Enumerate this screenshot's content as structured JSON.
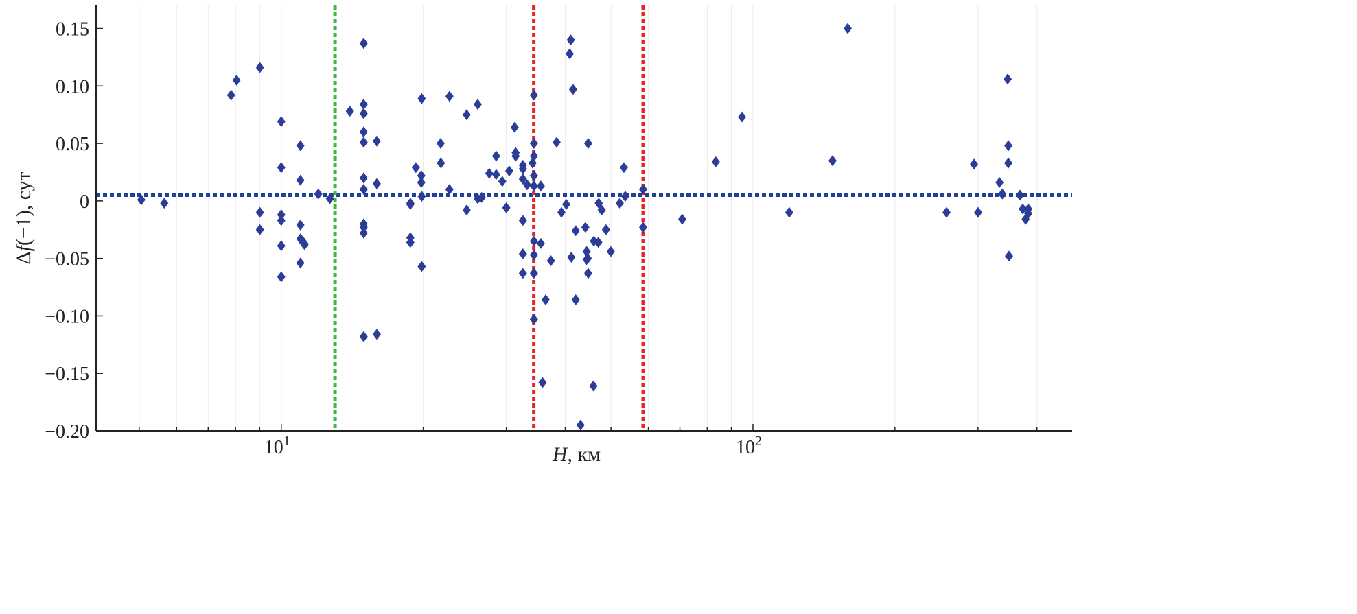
{
  "chart_data": {
    "type": "scatter",
    "title": "",
    "xlabel_var": "H",
    "xlabel_unit": ", км",
    "ylabel_pre": "Δ",
    "ylabel_var": "f",
    "ylabel_post": "(−1), сут",
    "xscale": "log",
    "xlim": [
      4.05,
      475
    ],
    "ylim": [
      -0.2,
      0.17
    ],
    "grid": "faint minor vertical",
    "yticks": [
      {
        "value": 0.15,
        "label": "0.15"
      },
      {
        "value": 0.1,
        "label": "0.10"
      },
      {
        "value": 0.05,
        "label": "0.05"
      },
      {
        "value": 0,
        "label": "0"
      },
      {
        "value": -0.05,
        "label": "−0.05"
      },
      {
        "value": -0.1,
        "label": "−0.10"
      },
      {
        "value": -0.15,
        "label": "−0.15"
      },
      {
        "value": -0.2,
        "label": "−0.20"
      }
    ],
    "xticks": [
      {
        "value": 10,
        "base": "10",
        "exp": "1"
      },
      {
        "value": 100,
        "base": "10",
        "exp": "2"
      }
    ],
    "reference_lines": [
      {
        "orientation": "horizontal",
        "value": 0.005,
        "color": "#1f3f9c"
      },
      {
        "orientation": "vertical",
        "value": 13.0,
        "color": "#3cb83c"
      },
      {
        "orientation": "vertical",
        "value": 34.3,
        "color": "#e8262a"
      },
      {
        "orientation": "vertical",
        "value": 58.5,
        "color": "#e8262a"
      }
    ],
    "marker_color": "#2b3d97",
    "points": [
      [
        5.05,
        0.001
      ],
      [
        5.65,
        -0.002
      ],
      [
        7.83,
        0.092
      ],
      [
        8.04,
        0.105
      ],
      [
        9.01,
        0.116
      ],
      [
        9.01,
        -0.01
      ],
      [
        9.01,
        -0.025
      ],
      [
        10,
        0.069
      ],
      [
        10,
        0.029
      ],
      [
        10,
        -0.012
      ],
      [
        10,
        -0.017
      ],
      [
        10,
        -0.039
      ],
      [
        10,
        -0.066
      ],
      [
        10.98,
        0.048
      ],
      [
        10.98,
        0.018
      ],
      [
        10.98,
        -0.021
      ],
      [
        10.98,
        -0.033
      ],
      [
        11.1,
        -0.035
      ],
      [
        11.2,
        -0.038
      ],
      [
        10.98,
        -0.054
      ],
      [
        11.98,
        0.006
      ],
      [
        12.68,
        0.002
      ],
      [
        13.98,
        0.078
      ],
      [
        14.95,
        0.137
      ],
      [
        14.95,
        0.084
      ],
      [
        14.95,
        0.076
      ],
      [
        14.95,
        0.06
      ],
      [
        14.95,
        0.051
      ],
      [
        14.95,
        0.02
      ],
      [
        14.95,
        0.01
      ],
      [
        14.95,
        -0.02
      ],
      [
        14.95,
        -0.023
      ],
      [
        14.95,
        -0.028
      ],
      [
        14.95,
        -0.118
      ],
      [
        15.94,
        0.052
      ],
      [
        15.94,
        0.015
      ],
      [
        15.94,
        -0.116
      ],
      [
        18.78,
        -0.003
      ],
      [
        18.78,
        -0.002
      ],
      [
        18.78,
        -0.032
      ],
      [
        18.78,
        -0.036
      ],
      [
        19.29,
        0.029
      ],
      [
        19.81,
        0.022
      ],
      [
        19.81,
        0.016
      ],
      [
        19.85,
        0.004
      ],
      [
        19.85,
        0.089
      ],
      [
        19.85,
        -0.057
      ],
      [
        21.77,
        0.05
      ],
      [
        21.8,
        0.033
      ],
      [
        22.73,
        0.091
      ],
      [
        22.73,
        0.01
      ],
      [
        24.72,
        0.075
      ],
      [
        24.72,
        -0.008
      ],
      [
        26.09,
        0.084
      ],
      [
        26.09,
        0.002
      ],
      [
        26.6,
        0.003
      ],
      [
        27.6,
        0.024
      ],
      [
        28.55,
        0.039
      ],
      [
        28.55,
        0.023
      ],
      [
        29.42,
        0.017
      ],
      [
        30.0,
        -0.006
      ],
      [
        30.43,
        0.026
      ],
      [
        31.25,
        0.064
      ],
      [
        31.4,
        0.042
      ],
      [
        31.4,
        0.039
      ],
      [
        32.53,
        0.031
      ],
      [
        32.53,
        0.028
      ],
      [
        32.53,
        0.019
      ],
      [
        32.53,
        -0.017
      ],
      [
        32.53,
        -0.046
      ],
      [
        32.53,
        -0.063
      ],
      [
        33.2,
        0.014
      ],
      [
        34.1,
        0.033
      ],
      [
        34.33,
        0.092
      ],
      [
        34.33,
        0.05
      ],
      [
        34.33,
        0.039
      ],
      [
        34.33,
        0.022
      ],
      [
        34.33,
        0.013
      ],
      [
        34.33,
        -0.035
      ],
      [
        34.33,
        -0.047
      ],
      [
        34.33,
        -0.063
      ],
      [
        34.33,
        -0.103
      ],
      [
        35.5,
        0.013
      ],
      [
        35.5,
        -0.037
      ],
      [
        35.8,
        -0.158
      ],
      [
        36.35,
        -0.086
      ],
      [
        37.3,
        -0.052
      ],
      [
        38.35,
        0.051
      ],
      [
        39.26,
        -0.01
      ],
      [
        40.2,
        -0.003
      ],
      [
        40.88,
        0.128
      ],
      [
        41.1,
        0.14
      ],
      [
        41.56,
        0.097
      ],
      [
        41.2,
        -0.049
      ],
      [
        42.1,
        -0.086
      ],
      [
        42.1,
        -0.026
      ],
      [
        43.1,
        -0.195
      ],
      [
        44.13,
        -0.023
      ],
      [
        44.4,
        -0.051
      ],
      [
        44.4,
        -0.044
      ],
      [
        44.65,
        -0.05
      ],
      [
        44.75,
        0.05
      ],
      [
        44.75,
        -0.063
      ],
      [
        45.9,
        -0.161
      ],
      [
        46.0,
        -0.035
      ],
      [
        47.0,
        -0.036
      ],
      [
        47.1,
        -0.002
      ],
      [
        47.8,
        -0.008
      ],
      [
        48.8,
        -0.025
      ],
      [
        49.95,
        -0.044
      ],
      [
        52.2,
        -0.002
      ],
      [
        53.26,
        0.029
      ],
      [
        53.6,
        0.004
      ],
      [
        58.5,
        0.01
      ],
      [
        58.5,
        -0.023
      ],
      [
        70.8,
        -0.016
      ],
      [
        83.4,
        0.034
      ],
      [
        94.8,
        0.073
      ],
      [
        119.4,
        -0.01
      ],
      [
        147.5,
        0.035
      ],
      [
        158.8,
        0.15
      ],
      [
        257.3,
        -0.01
      ],
      [
        294.2,
        0.032
      ],
      [
        300.2,
        -0.01
      ],
      [
        333.2,
        0.016
      ],
      [
        337.7,
        0.006
      ],
      [
        346.7,
        0.106
      ],
      [
        347.9,
        0.048
      ],
      [
        347.9,
        0.033
      ],
      [
        349,
        -0.048
      ],
      [
        368.3,
        0.005
      ],
      [
        373.3,
        -0.007
      ],
      [
        378.4,
        -0.016
      ],
      [
        383.5,
        -0.011
      ],
      [
        383.5,
        -0.007
      ]
    ]
  }
}
